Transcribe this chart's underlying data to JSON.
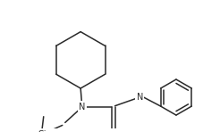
{
  "background_color": "#ffffff",
  "line_color": "#2a2a2a",
  "line_width": 1.1,
  "font_size": 7.0,
  "figsize": [
    2.27,
    1.48
  ],
  "dpi": 100
}
